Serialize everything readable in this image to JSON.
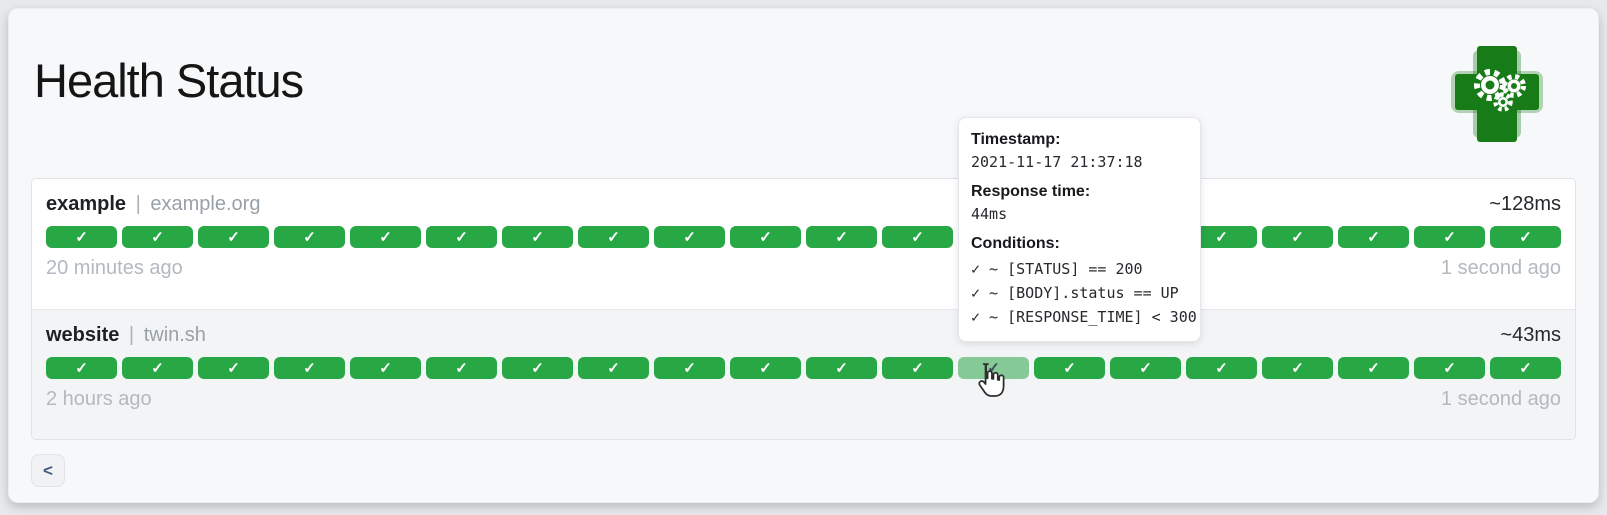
{
  "page": {
    "title": "Health Status"
  },
  "logo": {
    "name": "gatus-green-cross-logo",
    "cross_color": "#177c17",
    "gear_color": "#ffffff"
  },
  "colors": {
    "success_bar": "#28a745",
    "hovered_bar": "#85c997",
    "muted_text": "#b3b9c0",
    "host_text": "#99a1a8"
  },
  "services": [
    {
      "name": "example",
      "separator": "|",
      "host": "example.org",
      "avg_response": "~128ms",
      "oldest_label": "20 minutes ago",
      "newest_label": "1 second ago",
      "hovered_index": null,
      "results": [
        "success",
        "success",
        "success",
        "success",
        "success",
        "success",
        "success",
        "success",
        "success",
        "success",
        "success",
        "success",
        "success",
        "success",
        "success",
        "success",
        "success",
        "success",
        "success",
        "success"
      ]
    },
    {
      "name": "website",
      "separator": "|",
      "host": "twin.sh",
      "avg_response": "~43ms",
      "oldest_label": "2 hours ago",
      "newest_label": "1 second ago",
      "hovered_index": 12,
      "results": [
        "success",
        "success",
        "success",
        "success",
        "success",
        "success",
        "success",
        "success",
        "success",
        "success",
        "success",
        "success",
        "success",
        "success",
        "success",
        "success",
        "success",
        "success",
        "success",
        "success"
      ]
    }
  ],
  "tooltip": {
    "timestamp_label": "Timestamp:",
    "timestamp": "2021-11-17 21:37:18",
    "response_time_label": "Response time:",
    "response_time": "44ms",
    "conditions_label": "Conditions:",
    "conditions": [
      "✓ ~ [STATUS] == 200",
      "✓ ~ [BODY].status == UP",
      "✓ ~ [RESPONSE_TIME] < 300"
    ]
  },
  "icons": {
    "success_check": "✓",
    "prev_chevron": "<"
  }
}
